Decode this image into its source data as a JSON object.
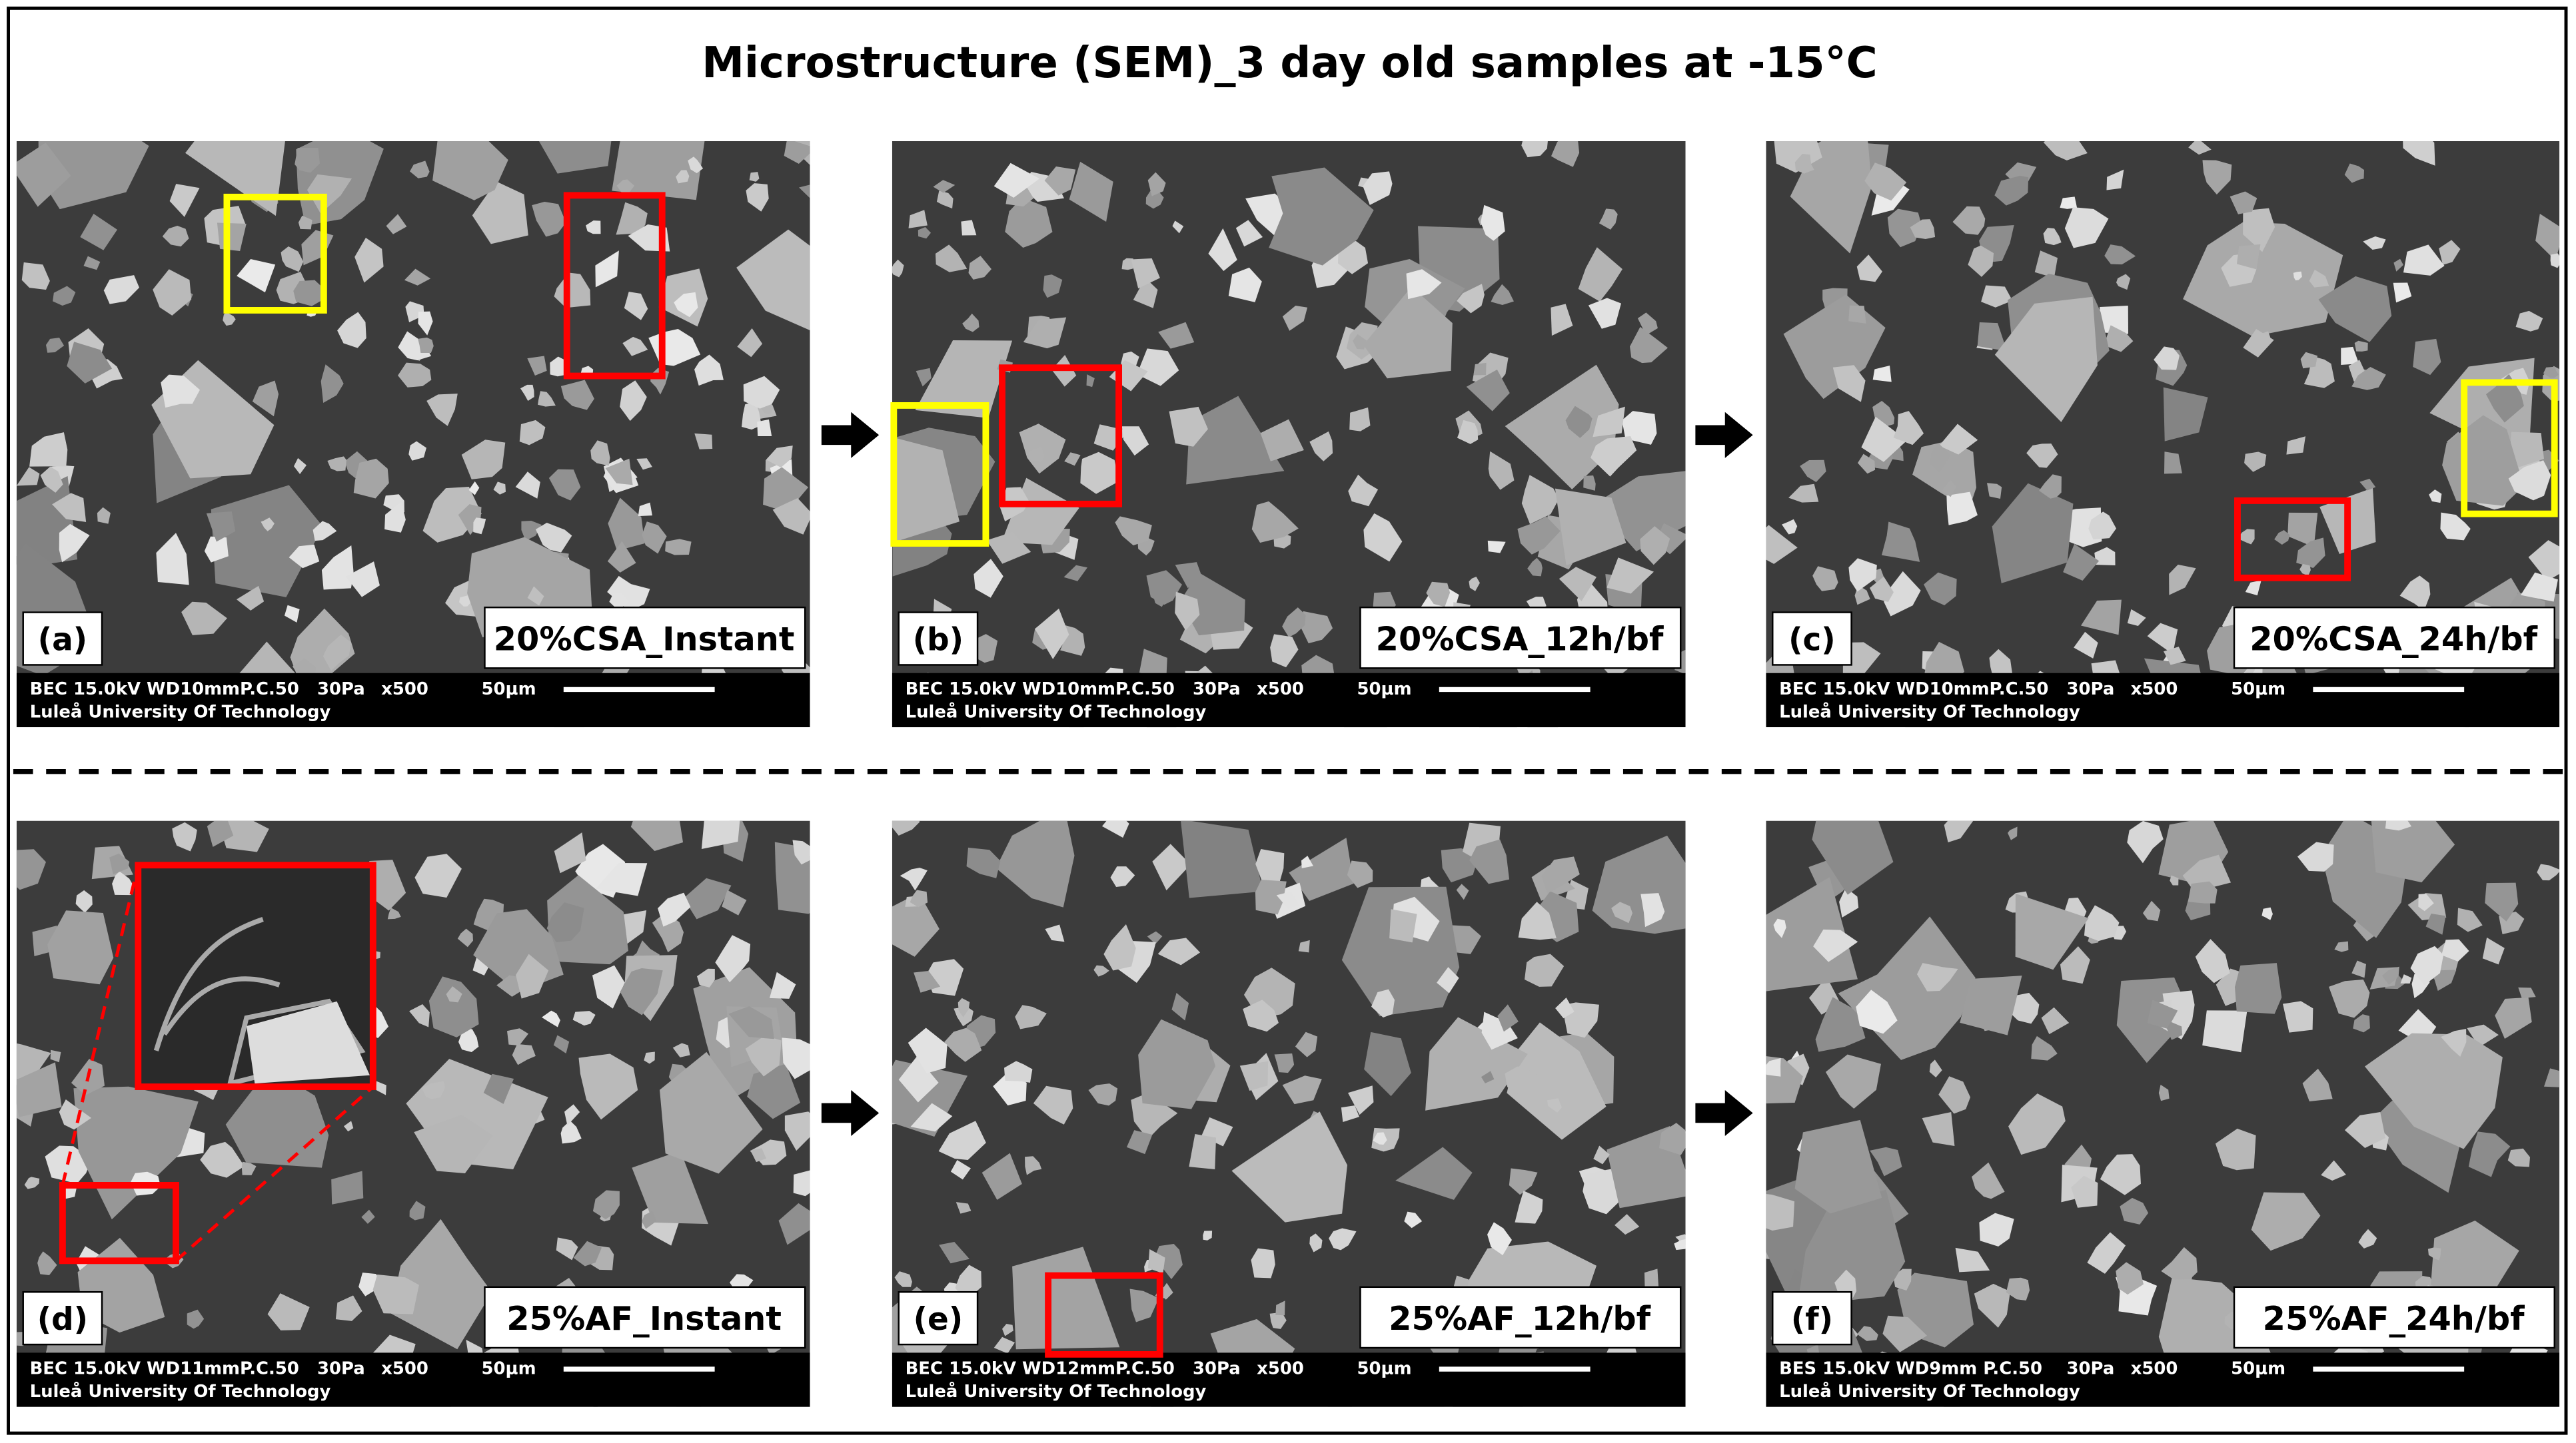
{
  "title": "Microstructure (SEM)_3 day old samples at -15°C",
  "panels": [
    {
      "label": "(a)",
      "sample": "20%CSA_Instant",
      "instrument": "BEC 15.0kV WD10mmP.C.50",
      "pressure": "30Pa",
      "magnification": "x500",
      "scale": "50μm",
      "institution": "Luleå University Of Technology"
    },
    {
      "label": "(b)",
      "sample": "20%CSA_12h/bf",
      "instrument": "BEC 15.0kV WD10mmP.C.50",
      "pressure": "30Pa",
      "magnification": "x500",
      "scale": "50μm",
      "institution": "Luleå University Of Technology"
    },
    {
      "label": "(c)",
      "sample": "20%CSA_24h/bf",
      "instrument": "BEC 15.0kV WD10mmP.C.50",
      "pressure": "30Pa",
      "magnification": "x500",
      "scale": "50μm",
      "institution": "Luleå University Of Technology"
    },
    {
      "label": "(d)",
      "sample": "25%AF_Instant",
      "instrument": "BEC 15.0kV WD11mmP.C.50",
      "pressure": "30Pa",
      "magnification": "x500",
      "scale": "50μm",
      "institution": "Luleå University Of Technology"
    },
    {
      "label": "(e)",
      "sample": "25%AF_12h/bf",
      "instrument": "BEC 15.0kV WD12mmP.C.50",
      "pressure": "30Pa",
      "magnification": "x500",
      "scale": "50μm",
      "institution": "Luleå University Of Technology"
    },
    {
      "label": "(f)",
      "sample": "25%AF_24h/bf",
      "instrument": "BES 15.0kV WD9mm  P.C.50",
      "pressure": "30Pa",
      "magnification": "x500",
      "scale": "50μm",
      "institution": "Luleå University Of Technology"
    }
  ]
}
